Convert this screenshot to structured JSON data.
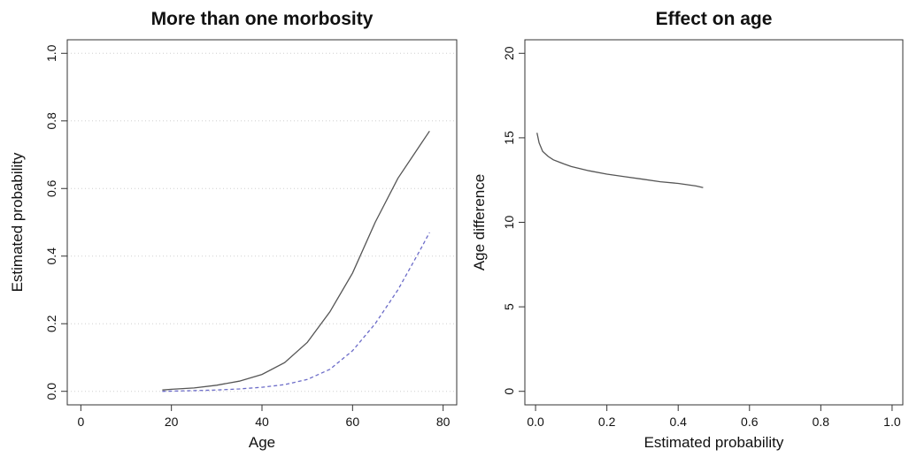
{
  "chart_data": [
    {
      "type": "line",
      "title": "More than one morbosity",
      "xlabel": "Age",
      "ylabel": "Estimated probability",
      "xlim": [
        -3,
        83
      ],
      "ylim": [
        -0.04,
        1.04
      ],
      "xticks": [
        0,
        20,
        40,
        60,
        80
      ],
      "xtick_labels": [
        "0",
        "20",
        "40",
        "60",
        "80"
      ],
      "yticks": [
        0.0,
        0.2,
        0.4,
        0.6,
        0.8,
        1.0
      ],
      "ytick_labels": [
        "0.0",
        "0.2",
        "0.4",
        "0.6",
        "0.8",
        "1.0"
      ],
      "grid": "horizontal dotted",
      "series": [
        {
          "style": "solid",
          "color": "#555555",
          "x": [
            18,
            20,
            25,
            30,
            35,
            40,
            45,
            50,
            55,
            60,
            65,
            70,
            75,
            77
          ],
          "y": [
            0.004,
            0.006,
            0.01,
            0.018,
            0.03,
            0.05,
            0.085,
            0.145,
            0.235,
            0.35,
            0.5,
            0.63,
            0.73,
            0.77
          ]
        },
        {
          "style": "dashed",
          "color": "#6b6bc8",
          "x": [
            18,
            25,
            30,
            35,
            40,
            45,
            50,
            55,
            60,
            65,
            70,
            75,
            77
          ],
          "y": [
            0.0,
            0.002,
            0.004,
            0.007,
            0.012,
            0.02,
            0.035,
            0.065,
            0.12,
            0.2,
            0.3,
            0.42,
            0.47
          ]
        }
      ]
    },
    {
      "type": "line",
      "title": "Effect on age",
      "xlabel": "Estimated probability",
      "ylabel": "Age difference",
      "xlim": [
        -0.03,
        1.03
      ],
      "ylim": [
        -0.8,
        20.8
      ],
      "xticks": [
        0.0,
        0.2,
        0.4,
        0.6,
        0.8,
        1.0
      ],
      "xtick_labels": [
        "0.0",
        "0.2",
        "0.4",
        "0.6",
        "0.8",
        "1.0"
      ],
      "yticks": [
        0,
        5,
        10,
        15,
        20
      ],
      "ytick_labels": [
        "0",
        "5",
        "10",
        "15",
        "20"
      ],
      "grid": "none",
      "series": [
        {
          "style": "solid",
          "color": "#555555",
          "x": [
            0.004,
            0.01,
            0.02,
            0.035,
            0.05,
            0.08,
            0.1,
            0.15,
            0.2,
            0.25,
            0.3,
            0.35,
            0.4,
            0.45,
            0.47
          ],
          "y": [
            15.3,
            14.7,
            14.2,
            13.9,
            13.7,
            13.45,
            13.3,
            13.05,
            12.85,
            12.7,
            12.55,
            12.4,
            12.3,
            12.15,
            12.05
          ]
        }
      ]
    }
  ]
}
